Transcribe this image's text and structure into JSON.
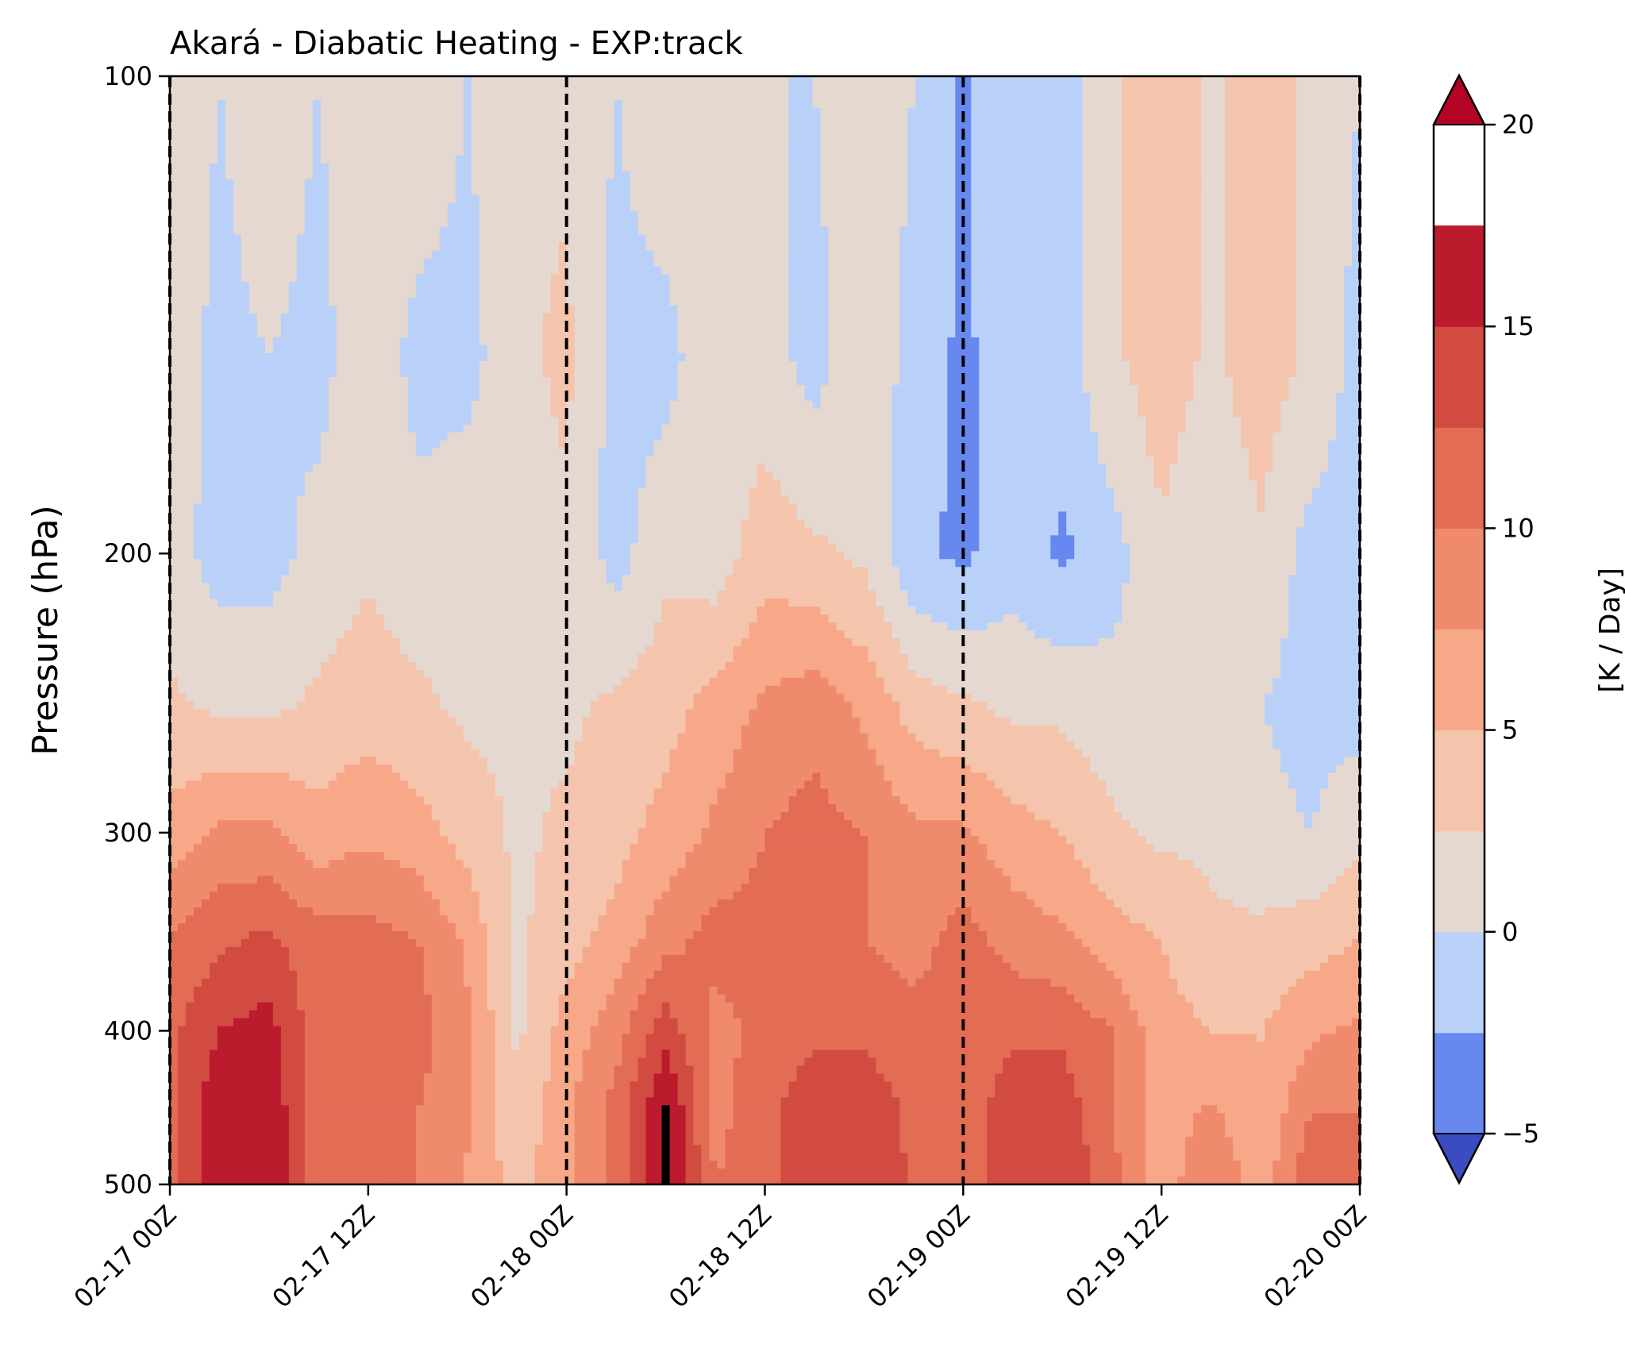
{
  "chart_data": {
    "type": "contourf",
    "title": "Akará - Diabatic Heating - EXP:track",
    "xlabel": "",
    "ylabel": "Pressure (hPa)",
    "x_ticks": [
      "02-17 00Z",
      "02-17 12Z",
      "02-18 00Z",
      "02-18 12Z",
      "02-19 00Z",
      "02-19 12Z",
      "02-20 00Z"
    ],
    "x_range_hours": [
      0,
      72
    ],
    "y_ticks": [
      100,
      200,
      300,
      400,
      500
    ],
    "ylim": [
      100,
      500
    ],
    "y_scale": "log",
    "y_inverted": true,
    "vertical_dashed_lines": [
      "02-17 00Z",
      "02-18 00Z",
      "02-19 00Z",
      "02-20 00Z"
    ],
    "colorbar": {
      "label": "[K / Day]",
      "ticks": [
        -5,
        0,
        5,
        10,
        15,
        20
      ],
      "levels": [
        -5,
        -2.5,
        0,
        2.5,
        5,
        7.5,
        10,
        12.5,
        15,
        17.5,
        20
      ],
      "colors": [
        "#6788ee",
        "#b9d0f9",
        "#e5d8d1",
        "#f5c4ac",
        "#f7a889",
        "#f08a6c",
        "#e36c55",
        "#d24b40",
        "#bb1b2c"
      ],
      "extend_under_color": "#3b4cc0",
      "extend_over_color": "#b40426"
    },
    "pressure_levels": [
      100,
      150,
      200,
      250,
      300,
      350,
      400,
      450,
      500
    ],
    "time_hours": [
      0,
      3,
      6,
      9,
      12,
      15,
      18,
      21,
      24,
      27,
      30,
      33,
      36,
      39,
      42,
      45,
      48,
      51,
      54,
      57,
      60,
      63,
      66,
      69,
      72
    ],
    "values": [
      [
        2,
        0,
        2,
        0,
        2,
        2,
        0,
        2,
        2,
        0,
        2,
        2,
        0,
        0,
        2,
        0,
        -3,
        0,
        -1,
        2,
        4,
        2,
        4,
        2,
        0
      ],
      [
        2,
        -1,
        0,
        -1,
        2,
        -1,
        -1,
        2,
        3,
        -1,
        -1,
        2,
        1,
        -1,
        2,
        -1,
        -3,
        -1,
        -1,
        2,
        4,
        2,
        4,
        2,
        -1
      ],
      [
        1,
        -1,
        -1,
        1,
        2,
        1,
        2,
        1,
        2,
        -1,
        2,
        1,
        4,
        3,
        2,
        -2,
        -3,
        -1,
        -3,
        -1,
        2,
        0,
        2,
        -1,
        -1
      ],
      [
        3,
        2,
        2,
        3,
        4,
        3,
        2,
        2,
        2,
        3,
        4,
        6,
        8,
        9,
        7,
        4,
        3,
        2,
        2,
        1,
        0,
        0,
        0,
        -1,
        -1
      ],
      [
        6,
        8,
        8,
        6,
        7,
        6,
        4,
        2,
        3,
        4,
        6,
        8,
        10,
        11,
        10,
        8,
        8,
        6,
        5,
        3,
        2,
        2,
        1,
        0,
        2
      ],
      [
        10,
        12,
        13,
        11,
        11,
        10,
        7,
        2,
        4,
        6,
        9,
        11,
        11,
        10,
        10,
        9,
        11,
        9,
        8,
        6,
        5,
        3,
        3,
        4,
        5
      ],
      [
        12,
        15,
        16,
        11,
        11,
        11,
        8,
        2,
        6,
        9,
        14,
        9,
        11,
        12,
        12,
        11,
        11,
        12,
        12,
        10,
        6,
        5,
        5,
        7,
        8
      ],
      [
        12,
        17,
        17,
        11,
        11,
        10,
        8,
        3,
        7,
        11,
        18,
        9,
        12,
        14,
        14,
        12,
        11,
        14,
        14,
        10,
        6,
        8,
        5,
        10,
        10
      ],
      [
        12,
        17,
        17,
        11,
        10,
        10,
        7,
        4,
        7,
        11,
        18,
        10,
        12,
        14,
        15,
        12,
        11,
        14,
        15,
        11,
        6,
        10,
        6,
        12,
        10
      ]
    ]
  }
}
